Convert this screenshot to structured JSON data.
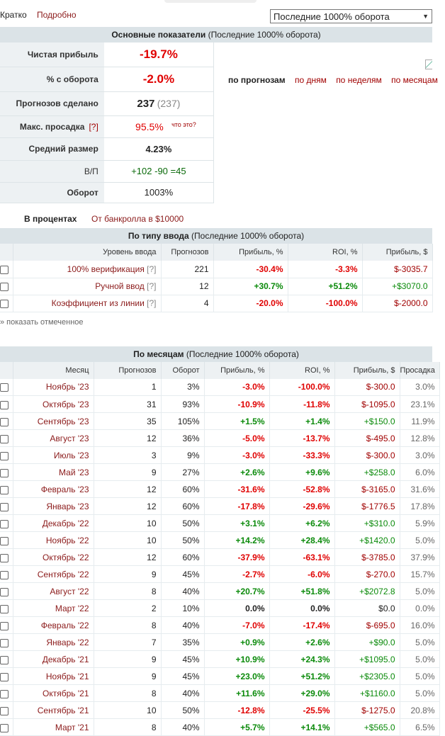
{
  "top": {
    "brief": "Кратко",
    "detail": "Подробно",
    "period_selected": "Последние 1000% оборота"
  },
  "summary": {
    "title": "Основные показатели",
    "subtitle": "(Последние 1000% оборота)",
    "rows": {
      "net_profit": {
        "label": "Чистая прибыль",
        "value": "-19.7%"
      },
      "turnover_pct": {
        "label": "% с оборота",
        "value": "-2.0%"
      },
      "forecasts": {
        "label": "Прогнозов сделано",
        "value": "237",
        "extra": "(237)"
      },
      "drawdown": {
        "label": "Макс. просадка",
        "help": "[?]",
        "value": "95.5%",
        "note": "что это?"
      },
      "avg_size": {
        "label": "Средний размер",
        "value": "4.23%"
      },
      "wl": {
        "label": "В/П",
        "value": "+102 -90 =45"
      },
      "turnover": {
        "label": "Оборот",
        "value": "1003%"
      }
    },
    "foot_bold": "В процентах",
    "foot_link": "От банкролла в $10000",
    "chart_tabs": [
      "по прогнозам",
      "по дням",
      "по неделям",
      "по месяцам"
    ]
  },
  "input_type": {
    "title": "По типу ввода",
    "subtitle": "(Последние 1000% оборота)",
    "headers": [
      "Уровень ввода",
      "Прогнозов",
      "Прибыль, %",
      "ROI, %",
      "Прибыль, $"
    ],
    "rows": [
      {
        "name": "100% верификация",
        "help": "[?]",
        "count": "221",
        "profit": "-30.4%",
        "roi": "-3.3%",
        "usd": "$-3035.7"
      },
      {
        "name": "Ручной ввод",
        "help": "[?]",
        "count": "12",
        "profit": "+30.7%",
        "roi": "+51.2%",
        "usd": "+$3070.0"
      },
      {
        "name": "Коэффициент из линии",
        "help": "[?]",
        "count": "4",
        "profit": "-20.0%",
        "roi": "-100.0%",
        "usd": "$-2000.0"
      }
    ],
    "show_marked": "» показать отмеченное"
  },
  "months": {
    "title": "По месяцам",
    "subtitle": "(Последние 1000% оборота)",
    "headers": [
      "Месяц",
      "Прогнозов",
      "Оборот",
      "Прибыль, %",
      "ROI, %",
      "Прибыль, $",
      "Просадка"
    ],
    "rows": [
      {
        "m": "Ноябрь '23",
        "n": "1",
        "t": "3%",
        "p": "-3.0%",
        "r": "-100.0%",
        "u": "$-300.0",
        "d": "3.0%"
      },
      {
        "m": "Октябрь '23",
        "n": "31",
        "t": "93%",
        "p": "-10.9%",
        "r": "-11.8%",
        "u": "$-1095.0",
        "d": "23.1%"
      },
      {
        "m": "Сентябрь '23",
        "n": "35",
        "t": "105%",
        "p": "+1.5%",
        "r": "+1.4%",
        "u": "+$150.0",
        "d": "11.9%"
      },
      {
        "m": "Август '23",
        "n": "12",
        "t": "36%",
        "p": "-5.0%",
        "r": "-13.7%",
        "u": "$-495.0",
        "d": "12.8%"
      },
      {
        "m": "Июль '23",
        "n": "3",
        "t": "9%",
        "p": "-3.0%",
        "r": "-33.3%",
        "u": "$-300.0",
        "d": "3.0%"
      },
      {
        "m": "Май '23",
        "n": "9",
        "t": "27%",
        "p": "+2.6%",
        "r": "+9.6%",
        "u": "+$258.0",
        "d": "6.0%"
      },
      {
        "m": "Февраль '23",
        "n": "12",
        "t": "60%",
        "p": "-31.6%",
        "r": "-52.8%",
        "u": "$-3165.0",
        "d": "31.6%"
      },
      {
        "m": "Январь '23",
        "n": "12",
        "t": "60%",
        "p": "-17.8%",
        "r": "-29.6%",
        "u": "$-1776.5",
        "d": "17.8%"
      },
      {
        "m": "Декабрь '22",
        "n": "10",
        "t": "50%",
        "p": "+3.1%",
        "r": "+6.2%",
        "u": "+$310.0",
        "d": "5.9%"
      },
      {
        "m": "Ноябрь '22",
        "n": "10",
        "t": "50%",
        "p": "+14.2%",
        "r": "+28.4%",
        "u": "+$1420.0",
        "d": "5.0%"
      },
      {
        "m": "Октябрь '22",
        "n": "12",
        "t": "60%",
        "p": "-37.9%",
        "r": "-63.1%",
        "u": "$-3785.0",
        "d": "37.9%"
      },
      {
        "m": "Сентябрь '22",
        "n": "9",
        "t": "45%",
        "p": "-2.7%",
        "r": "-6.0%",
        "u": "$-270.0",
        "d": "15.7%"
      },
      {
        "m": "Август '22",
        "n": "8",
        "t": "40%",
        "p": "+20.7%",
        "r": "+51.8%",
        "u": "+$2072.8",
        "d": "5.0%"
      },
      {
        "m": "Март '22",
        "n": "2",
        "t": "10%",
        "p": "0.0%",
        "r": "0.0%",
        "u": "$0.0",
        "d": "0.0%"
      },
      {
        "m": "Февраль '22",
        "n": "8",
        "t": "40%",
        "p": "-7.0%",
        "r": "-17.4%",
        "u": "$-695.0",
        "d": "16.0%"
      },
      {
        "m": "Январь '22",
        "n": "7",
        "t": "35%",
        "p": "+0.9%",
        "r": "+2.6%",
        "u": "+$90.0",
        "d": "5.0%"
      },
      {
        "m": "Декабрь '21",
        "n": "9",
        "t": "45%",
        "p": "+10.9%",
        "r": "+24.3%",
        "u": "+$1095.0",
        "d": "5.0%"
      },
      {
        "m": "Ноябрь '21",
        "n": "9",
        "t": "45%",
        "p": "+23.0%",
        "r": "+51.2%",
        "u": "+$2305.0",
        "d": "5.0%"
      },
      {
        "m": "Октябрь '21",
        "n": "8",
        "t": "40%",
        "p": "+11.6%",
        "r": "+29.0%",
        "u": "+$1160.0",
        "d": "5.0%"
      },
      {
        "m": "Сентябрь '21",
        "n": "10",
        "t": "50%",
        "p": "-12.8%",
        "r": "-25.5%",
        "u": "$-1275.0",
        "d": "20.8%"
      },
      {
        "m": "Март '21",
        "n": "8",
        "t": "40%",
        "p": "+5.7%",
        "r": "+14.1%",
        "u": "+$565.0",
        "d": "6.5%"
      }
    ]
  }
}
